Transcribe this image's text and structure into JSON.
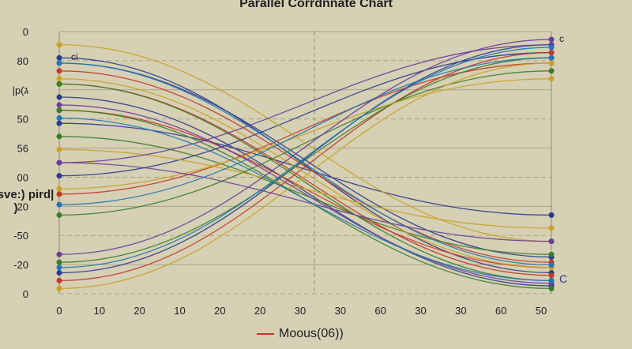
{
  "chart_data": {
    "type": "line",
    "title": "Parallel Corrdnnate Chart",
    "ylabel": "Carsve:) pird|  )",
    "left_ticks": [
      "0",
      "80",
      "|p(ג",
      "50",
      "56",
      "00",
      "20",
      "-50",
      "-20",
      "0"
    ],
    "bottom_ticks": [
      "0",
      "10",
      "20",
      "10",
      "20",
      "20",
      "30",
      "30",
      "60",
      "30",
      "30",
      "60",
      "50"
    ],
    "annotations": {
      "top_left": "ci",
      "top_right": "c",
      "bottom_right": "C"
    },
    "legend": [
      {
        "name": "Moous(06))",
        "color": "#c0392b"
      }
    ],
    "grid": true,
    "series": [
      {
        "color": "#2b3a8c",
        "values": [
          [
            0.1,
            0.92
          ],
          [
            0.35,
            0.7
          ],
          [
            0.55,
            0.08
          ],
          [
            0.92,
            0.05
          ],
          [
            0.25,
            0.97
          ],
          [
            0.12,
            0.86
          ]
        ]
      },
      {
        "color": "#c0392b",
        "values": [
          [
            0.15,
            0.88
          ],
          [
            0.3,
            0.9
          ],
          [
            0.62,
            0.12
          ],
          [
            0.95,
            0.08
          ],
          [
            0.2,
            0.93
          ]
        ]
      },
      {
        "color": "#3a7d2c",
        "values": [
          [
            0.2,
            0.95
          ],
          [
            0.4,
            0.85
          ],
          [
            0.7,
            0.15
          ],
          [
            0.88,
            0.1
          ],
          [
            0.3,
            0.98
          ]
        ]
      },
      {
        "color": "#c9a227",
        "values": [
          [
            0.05,
            0.8
          ],
          [
            0.45,
            0.75
          ],
          [
            0.6,
            0.18
          ],
          [
            0.98,
            0.12
          ],
          [
            0.18,
            0.9
          ]
        ]
      },
      {
        "color": "#6a3d9a",
        "values": [
          [
            0.28,
            0.96
          ],
          [
            0.5,
            0.8
          ],
          [
            0.5,
            0.05
          ],
          [
            0.85,
            0.03
          ]
        ]
      },
      {
        "color": "#1f78b4",
        "values": [
          [
            0.12,
            0.89
          ],
          [
            0.33,
            0.95
          ],
          [
            0.66,
            0.1
          ],
          [
            0.9,
            0.06
          ]
        ]
      }
    ]
  }
}
